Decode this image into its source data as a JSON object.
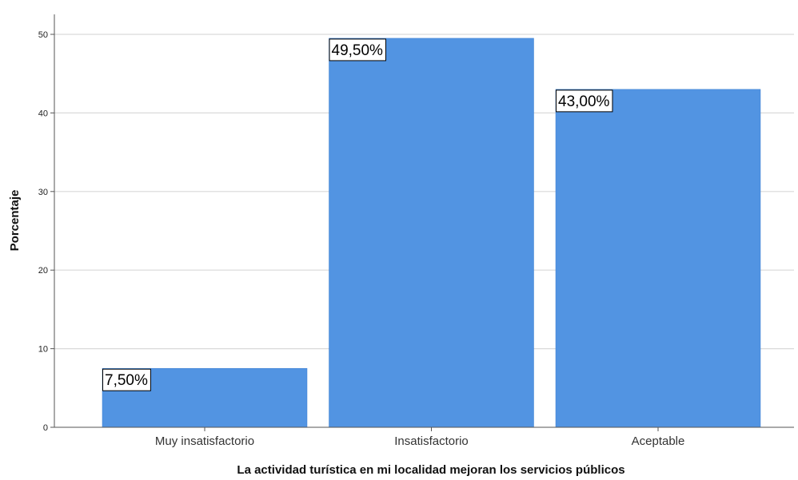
{
  "chart_data": {
    "type": "bar",
    "categories": [
      "Muy insatisfactorio",
      "Insatisfactorio",
      "Aceptable"
    ],
    "values": [
      7.5,
      49.5,
      43.0
    ],
    "data_labels": [
      "7,50%",
      "49,50%",
      "43,00%"
    ],
    "title": "",
    "xlabel": "La actividad turística en mi localidad mejoran los servicios públicos",
    "ylabel": "Porcentaje",
    "ylim": [
      0,
      50
    ],
    "yticks": [
      0,
      10,
      20,
      30,
      40,
      50
    ],
    "grid": true,
    "legend": "none",
    "colors": {
      "bar": "#5294e2",
      "bar_edge": "#3b7fd0",
      "grid": "#d9d9d9",
      "axis": "#555555"
    }
  }
}
